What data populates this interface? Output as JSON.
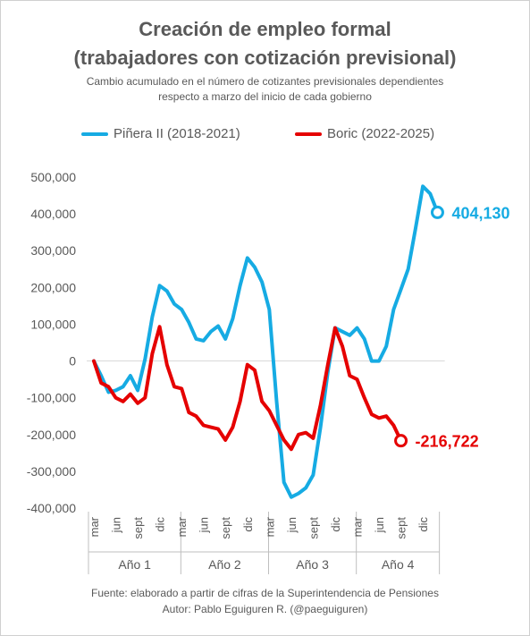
{
  "title_line1": "Creación de empleo formal",
  "title_line2": "(trabajadores con cotización previsional)",
  "subtitle_line1": "Cambio acumulado en el número de cotizantes previsionales dependientes",
  "subtitle_line2": "respecto a marzo del inicio de cada gobierno",
  "footer_line1": "Fuente: elaborado a partir de cifras de la Superintendencia de Pensiones",
  "footer_line2": "Autor: Pablo Eguiguren R. (@paeguiguren)",
  "chart_data": {
    "type": "line",
    "ylim": [
      -400000,
      500000
    ],
    "yticks": [
      "-400,000",
      "-300,000",
      "-200,000",
      "-100,000",
      "0",
      "100,000",
      "200,000",
      "300,000",
      "400,000",
      "500,000"
    ],
    "ytick_values": [
      -400000,
      -300000,
      -200000,
      -100000,
      0,
      100000,
      200000,
      300000,
      400000,
      500000
    ],
    "x_tick_labels": [
      "mar",
      "jun",
      "sept",
      "dic",
      "mar",
      "jun",
      "sept",
      "dic",
      "mar",
      "jun",
      "sept",
      "dic",
      "mar",
      "jun",
      "sept",
      "dic"
    ],
    "x_tick_index": [
      0,
      3,
      6,
      9,
      12,
      15,
      18,
      21,
      24,
      27,
      30,
      33,
      36,
      39,
      42,
      45
    ],
    "year_labels": [
      "Año 1",
      "Año 2",
      "Año 3",
      "Año 4"
    ],
    "n_points": 48,
    "grid": false,
    "legend_position": "top",
    "series": [
      {
        "name": "Piñera II (2018-2021)",
        "color": "#16ABE3",
        "end_label": "404,130",
        "values": [
          0,
          -40000,
          -85000,
          -80000,
          -70000,
          -40000,
          -80000,
          5000,
          120000,
          205000,
          190000,
          155000,
          140000,
          105000,
          60000,
          55000,
          80000,
          95000,
          60000,
          115000,
          205000,
          280000,
          255000,
          215000,
          140000,
          -110000,
          -330000,
          -370000,
          -360000,
          -345000,
          -310000,
          -180000,
          -30000,
          90000,
          80000,
          70000,
          90000,
          60000,
          0,
          0,
          40000,
          140000,
          195000,
          250000,
          360000,
          475000,
          455000,
          404130
        ]
      },
      {
        "name": "Boric (2022-2025)",
        "color": "#E50000",
        "end_label": "-216,722",
        "values": [
          0,
          -60000,
          -70000,
          -100000,
          -110000,
          -90000,
          -115000,
          -100000,
          20000,
          93000,
          -10000,
          -70000,
          -75000,
          -140000,
          -150000,
          -175000,
          -180000,
          -185000,
          -215000,
          -180000,
          -110000,
          -10000,
          -25000,
          -110000,
          -135000,
          -175000,
          -215000,
          -240000,
          -200000,
          -195000,
          -210000,
          -120000,
          -10000,
          90000,
          40000,
          -40000,
          -50000,
          -100000,
          -145000,
          -155000,
          -150000,
          -175000,
          -216722
        ]
      }
    ]
  }
}
